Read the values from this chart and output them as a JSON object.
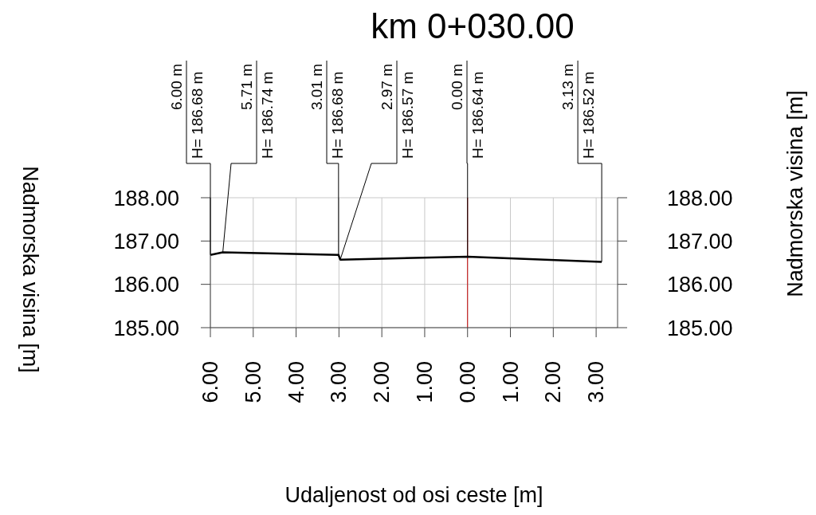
{
  "chart_data": {
    "type": "line",
    "title": "km 0+030.00",
    "xlabel": "Udaljenost od osi ceste [m]",
    "ylabel": "Nadmorska visina [m]",
    "y2label": "Nadmorska visina [m]",
    "x": [
      -6,
      -5.71,
      -3.01,
      -2.97,
      0,
      3.13
    ],
    "series": [
      {
        "color": "#000000",
        "values": [
          186.68,
          186.74,
          186.68,
          186.57,
          186.64,
          186.52
        ],
        "value_labels": [
          "H= 186.68 m",
          "H= 186.74 m",
          "H= 186.68 m",
          "H= 186.57 m",
          "H= 186.64 m",
          "H= 186.52 m"
        ]
      }
    ],
    "annotations": [
      {
        "text": "6.00 m",
        "x": -6,
        "y": 186.68
      },
      {
        "text": "5.71 m",
        "x": -5.71,
        "y": 186.74
      },
      {
        "text": "3.01 m",
        "x": -3.01,
        "y": 186.68
      },
      {
        "text": "2.97 m",
        "x": -2.97,
        "y": 186.57
      },
      {
        "text": "0.00 m",
        "x": 0,
        "y": 186.64
      },
      {
        "text": "3.13 m",
        "x": 3.13,
        "y": 186.52
      }
    ],
    "xlim": [
      -6,
      3.5
    ],
    "xticks": [
      {
        "value": -6,
        "label": "6.00"
      },
      {
        "value": -5,
        "label": "5.00"
      },
      {
        "value": -4,
        "label": "4.00"
      },
      {
        "value": -3,
        "label": "3.00"
      },
      {
        "value": -2,
        "label": "2.00"
      },
      {
        "value": -1,
        "label": "1.00"
      },
      {
        "value": 0,
        "label": "0.00"
      },
      {
        "value": 1,
        "label": "1.00"
      },
      {
        "value": 2,
        "label": "2.00"
      },
      {
        "value": 3,
        "label": "3.00"
      }
    ],
    "ylim": [
      185,
      188
    ],
    "yticks": [
      {
        "value": 185,
        "label": "185.00"
      },
      {
        "value": 186,
        "label": "186.00"
      },
      {
        "value": 187,
        "label": "187.00"
      },
      {
        "value": 188,
        "label": "188.00"
      }
    ],
    "y2lim": [
      185,
      188
    ],
    "y2ticks": [
      {
        "value": 185,
        "label": "185.00"
      },
      {
        "value": 186,
        "label": "186.00"
      },
      {
        "value": 187,
        "label": "187.00"
      },
      {
        "value": 188,
        "label": "188.00"
      }
    ],
    "ref_lines": [
      {
        "axis": "x",
        "value": 0,
        "color": "#c00000"
      }
    ],
    "grid": true,
    "marker": "none",
    "line_style": "solid"
  }
}
